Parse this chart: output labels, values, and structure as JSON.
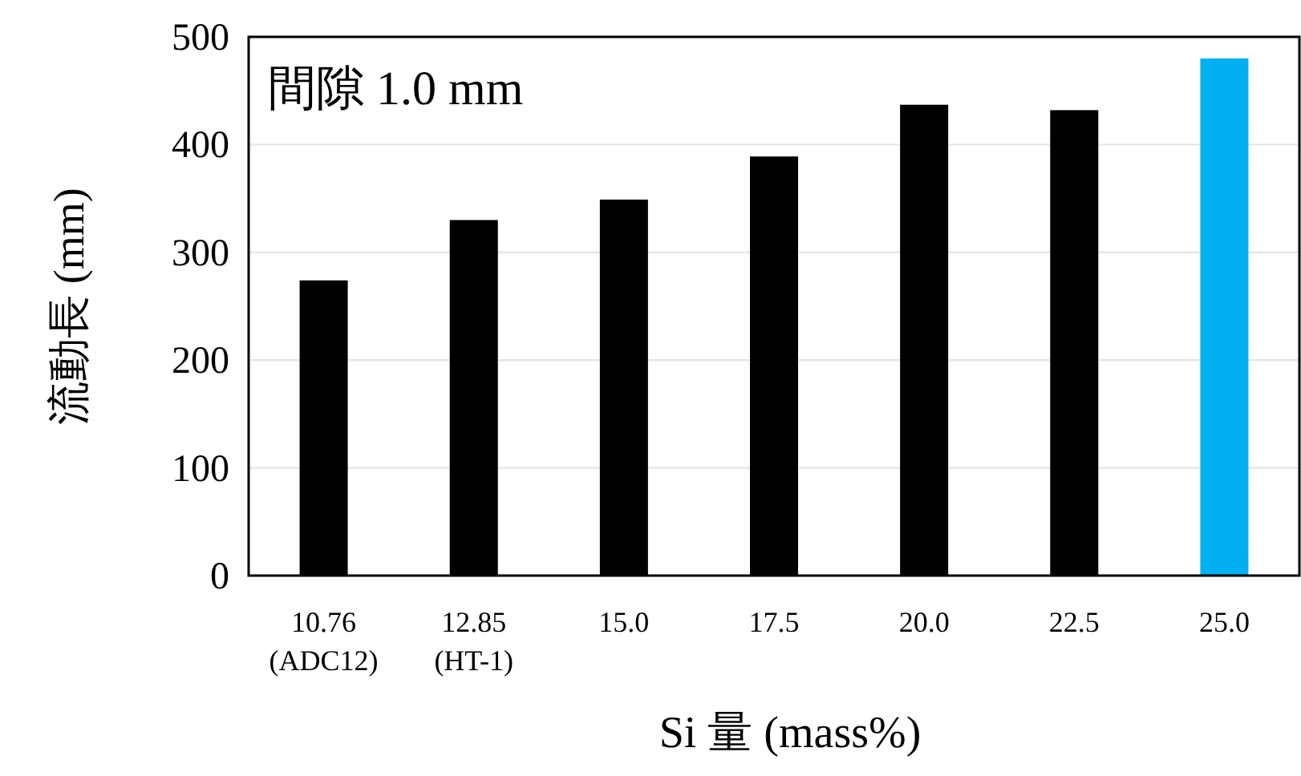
{
  "chart_data": {
    "type": "bar",
    "xlabel": "Si 量 (mass%)",
    "ylabel": "流動長 (mm)",
    "annotations": [
      "間隙 1.0 mm"
    ],
    "categories": [
      "10.76\n(ADC12)",
      "12.85\n(HT-1)",
      "15.0",
      "17.5",
      "20.0",
      "22.5",
      "25.0"
    ],
    "values": [
      274,
      330,
      349,
      389,
      437,
      432,
      480
    ],
    "colors": [
      "#000000",
      "#000000",
      "#000000",
      "#000000",
      "#000000",
      "#000000",
      "#00b0f0"
    ],
    "ylim": [
      0,
      500
    ],
    "yticks": [
      0,
      100,
      200,
      300,
      400,
      500
    ],
    "grid": "y"
  }
}
